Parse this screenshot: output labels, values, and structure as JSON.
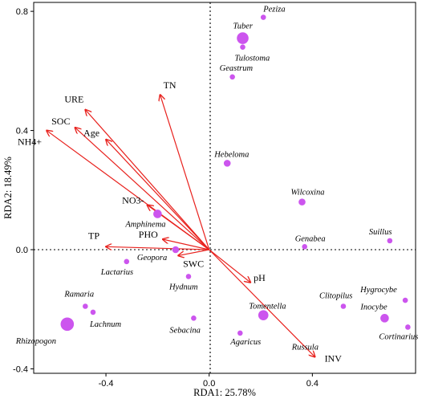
{
  "chart_data": {
    "type": "scatter",
    "subtype": "rda-biplot",
    "xlabel": "RDA1: 25.78%",
    "ylabel": "RDA2: 18.49%",
    "xlim": [
      -0.68,
      0.8
    ],
    "ylim": [
      -0.415,
      0.83
    ],
    "xticks": [
      -0.4,
      0,
      0.4
    ],
    "xtick_labels": [
      "-0.4",
      "0.0",
      "0.4"
    ],
    "yticks": [
      -0.4,
      0,
      0.4,
      0.8
    ],
    "ytick_labels": [
      "-0.4",
      "0.0",
      "0.4",
      "0.8"
    ],
    "zero_lines": "dotted",
    "arrow_color": "#e8211d",
    "point_color": "#cc55ee",
    "environmental_vectors": [
      {
        "name": "TN",
        "x": -0.19,
        "y": 0.52
      },
      {
        "name": "URE",
        "x": -0.48,
        "y": 0.47
      },
      {
        "name": "SOC",
        "x": -0.52,
        "y": 0.41
      },
      {
        "name": "Age",
        "x": -0.4,
        "y": 0.37
      },
      {
        "name": "NH4+",
        "x": -0.63,
        "y": 0.4
      },
      {
        "name": "NO3-",
        "x": -0.24,
        "y": 0.15
      },
      {
        "name": "TP",
        "x": -0.4,
        "y": 0.01
      },
      {
        "name": "PHO",
        "x": -0.18,
        "y": 0.035
      },
      {
        "name": "SWC",
        "x": -0.12,
        "y": -0.02
      },
      {
        "name": "pH",
        "x": 0.16,
        "y": -0.11
      },
      {
        "name": "INV",
        "x": 0.41,
        "y": -0.36
      }
    ],
    "species": [
      {
        "name": "Peziza",
        "x": 0.21,
        "y": 0.78,
        "size": 2
      },
      {
        "name": "Tuber",
        "x": 0.13,
        "y": 0.71,
        "size": 6
      },
      {
        "name": "Tulostoma",
        "x": 0.13,
        "y": 0.68,
        "size": 2
      },
      {
        "name": "Geastrum",
        "x": 0.09,
        "y": 0.58,
        "size": 2
      },
      {
        "name": "Hebeloma",
        "x": 0.07,
        "y": 0.29,
        "size": 3
      },
      {
        "name": "Wilcoxina",
        "x": 0.36,
        "y": 0.16,
        "size": 3
      },
      {
        "name": "Amphinema",
        "x": -0.2,
        "y": 0.12,
        "size": 4
      },
      {
        "name": "Genabea",
        "x": 0.37,
        "y": 0.01,
        "size": 2
      },
      {
        "name": "Suillus",
        "x": 0.7,
        "y": 0.03,
        "size": 2
      },
      {
        "name": "Geopora",
        "x": -0.13,
        "y": 0.0,
        "size": 3
      },
      {
        "name": "Lactarius",
        "x": -0.32,
        "y": -0.04,
        "size": 2
      },
      {
        "name": "Hydnum",
        "x": -0.08,
        "y": -0.09,
        "size": 2
      },
      {
        "name": "Ramaria",
        "x": -0.48,
        "y": -0.19,
        "size": 2
      },
      {
        "name": "Lachnum",
        "x": -0.45,
        "y": -0.21,
        "size": 2
      },
      {
        "name": "Rhizopogon",
        "x": -0.55,
        "y": -0.25,
        "size": 7
      },
      {
        "name": "Sebacina",
        "x": -0.06,
        "y": -0.23,
        "size": 2
      },
      {
        "name": "Tomentella",
        "x": 0.21,
        "y": -0.22,
        "size": 5
      },
      {
        "name": "Agaricus",
        "x": 0.12,
        "y": -0.28,
        "size": 2
      },
      {
        "name": "Clitopilus",
        "x": 0.52,
        "y": -0.19,
        "size": 2
      },
      {
        "name": "Hygrocybe",
        "x": 0.76,
        "y": -0.17,
        "size": 2
      },
      {
        "name": "Inocybe",
        "x": 0.68,
        "y": -0.23,
        "size": 4
      },
      {
        "name": "Cortinarius",
        "x": 0.77,
        "y": -0.26,
        "size": 2
      },
      {
        "name": "Russula",
        "x": 0.37,
        "y": -0.32,
        "size": 0
      }
    ]
  }
}
